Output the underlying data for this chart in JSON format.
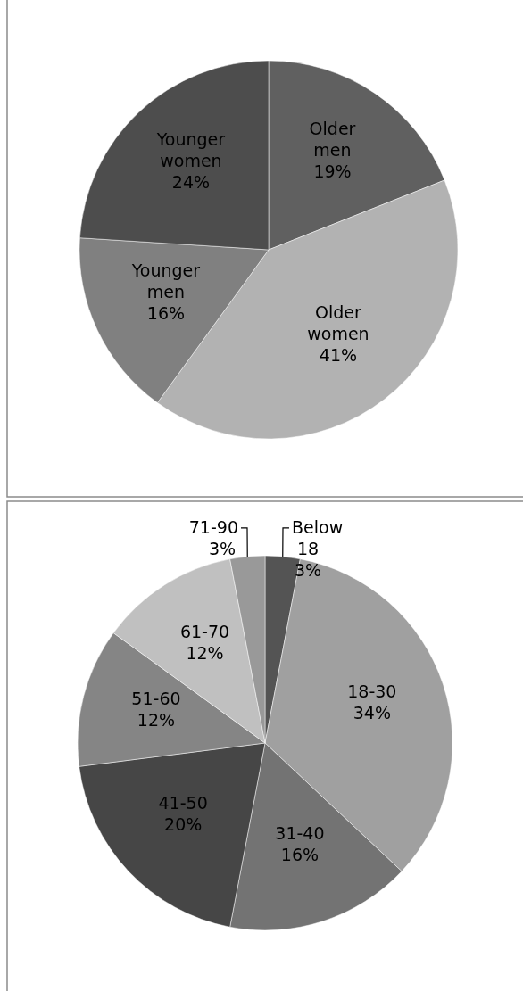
{
  "chart_data": [
    {
      "type": "pie",
      "categories": [
        "Older men",
        "Older women",
        "Younger men",
        "Younger women"
      ],
      "values": [
        19,
        41,
        16,
        24
      ],
      "colors": [
        "#606060",
        "#b2b2b2",
        "#808080",
        "#4d4d4d"
      ],
      "value_labels": [
        "19%",
        "41%",
        "16%",
        "24%"
      ]
    },
    {
      "type": "pie",
      "categories": [
        "Below 18",
        "18-30",
        "31-40",
        "41-50",
        "51-60",
        "61-70",
        "71-90"
      ],
      "values": [
        3,
        34,
        16,
        20,
        12,
        12,
        3
      ],
      "colors": [
        "#545454",
        "#a0a0a0",
        "#737373",
        "#464646",
        "#858585",
        "#c0c0c0",
        "#999999"
      ],
      "value_labels": [
        "3%",
        "34%",
        "16%",
        "20%",
        "12%",
        "12%",
        "3%"
      ]
    }
  ]
}
